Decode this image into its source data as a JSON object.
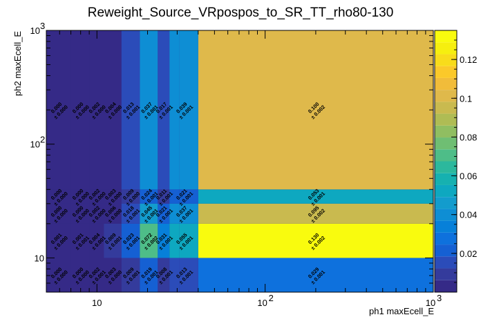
{
  "chart_data": {
    "type": "heatmap",
    "title": "Reweight_Source_VRpospos_to_SR_TT_rho80-130",
    "xlabel": "ph1 maxEcell_E",
    "ylabel": "ph2 maxEcell_E",
    "x_scale": "log",
    "y_scale": "log",
    "xlim": [
      5,
      1000
    ],
    "ylim": [
      5,
      1000
    ],
    "x_edges": [
      5,
      7,
      9,
      11,
      14,
      18,
      23,
      27,
      31,
      40,
      1000
    ],
    "y_edges": [
      5,
      10,
      20,
      30,
      40,
      1000
    ],
    "x_tick_labels": [
      {
        "v": 10,
        "t": "10"
      },
      {
        "v": 100,
        "t": "10"
      },
      {
        "v": 1000,
        "t": "10"
      }
    ],
    "x_tick_exps": [
      "",
      "2",
      "3"
    ],
    "y_tick_labels": [
      {
        "v": 10,
        "t": "10"
      },
      {
        "v": 100,
        "t": "10"
      },
      {
        "v": 1000,
        "t": "10"
      }
    ],
    "y_tick_exps": [
      "",
      "2",
      "3"
    ],
    "z_range": [
      0,
      0.135
    ],
    "z_ticks": [
      {
        "v": 0.02,
        "t": "0.02"
      },
      {
        "v": 0.04,
        "t": "0.04"
      },
      {
        "v": 0.06,
        "t": "0.06"
      },
      {
        "v": 0.08,
        "t": "0.08"
      },
      {
        "v": 0.1,
        "t": "0.1"
      },
      {
        "v": 0.12,
        "t": "0.12"
      }
    ],
    "palette": [
      "#352a87",
      "#343b9c",
      "#2b4cb9",
      "#1560d3",
      "#0e71dd",
      "#0780d9",
      "#0e8ed4",
      "#139ccd",
      "#0ea8c0",
      "#16b1b0",
      "#2cb89d",
      "#4ebd88",
      "#6fbe73",
      "#90be61",
      "#afbc54",
      "#c9ba4f",
      "#dfb94b",
      "#f1bc3a",
      "#fbc92a",
      "#f8dc1b",
      "#f6ef0f",
      "#f9fb0e"
    ],
    "cells": [
      {
        "row": 0,
        "values": [
          0.0,
          0.0,
          0.002,
          0.003,
          0.009,
          0.019,
          0.008,
          0.013,
          0.029
        ],
        "errors": [
          "0.000",
          "0.000",
          "0.001",
          "0.000",
          "0.001",
          "0.001",
          "0.001",
          "0.001",
          "0.001"
        ],
        "labels": [
          "0.000",
          "0.000",
          "0.002",
          "0.003",
          "0.009",
          "0.019",
          "0.008",
          "0.013",
          "0.029"
        ],
        "label_cols": [
          0,
          1,
          2,
          3,
          4,
          5,
          6,
          7,
          9
        ]
      },
      {
        "row": 1,
        "values": [
          0.001,
          0.001,
          0.004,
          0.009,
          0.023,
          0.072,
          0.031,
          0.055,
          0.13
        ],
        "errors": [
          "0.000",
          "0.001",
          "0.001",
          "0.001",
          "0.001",
          "0.002",
          "0.001",
          "0.001",
          "0.002"
        ],
        "labels": [
          "0.001",
          "0.001",
          "0.004",
          "0.009",
          "0.023",
          "0.072",
          "0.031",
          "0.055",
          "0.130"
        ],
        "label_cols": [
          0,
          1,
          2,
          3,
          4,
          5,
          6,
          7,
          9
        ]
      },
      {
        "row": 2,
        "values": [
          0.0,
          0.0,
          0.002,
          0.006,
          0.018,
          0.045,
          0.021,
          0.037,
          0.095
        ],
        "errors": [
          "0.000",
          "0.000",
          "0.000",
          "0.000",
          "0.001",
          "0.001",
          "0.001",
          "0.001",
          "0.002"
        ],
        "labels": [
          "0.000",
          "0.000",
          "0.002",
          "0.006",
          "0.018",
          "0.045",
          "0.021",
          "0.037",
          "0.095"
        ],
        "label_cols": [
          0,
          1,
          2,
          3,
          4,
          5,
          6,
          7,
          9
        ]
      },
      {
        "row": 3,
        "values": [
          0.0,
          0.0,
          0.002,
          0.003,
          0.009,
          0.024,
          0.011,
          0.021,
          0.053
        ],
        "errors": [
          "0.000",
          "0.000",
          "0.000",
          "0.000",
          "0.000",
          "0.001",
          "0.001",
          "0.001",
          "0.001"
        ],
        "labels": [
          "0.000",
          "0.000",
          "0.002",
          "0.003",
          "0.009",
          "0.024",
          "0.011",
          "0.021",
          "0.053"
        ],
        "label_cols": [
          0,
          1,
          2,
          3,
          4,
          5,
          6,
          7,
          9
        ]
      },
      {
        "row": 4,
        "values": [
          0.0,
          0.0,
          0.002,
          0.004,
          0.013,
          0.037,
          0.017,
          0.039,
          0.1
        ],
        "errors": [
          "0.000",
          "0.000",
          "0.000",
          "0.000",
          "0.001",
          "0.001",
          "0.001",
          "0.001",
          "0.002"
        ],
        "labels": [
          "0.000",
          "0.000",
          "0.002",
          "0.004",
          "0.013",
          "0.037",
          "0.017",
          "0.039",
          "0.100"
        ],
        "label_cols": [
          0,
          1,
          2,
          3,
          4,
          5,
          6,
          7,
          9
        ]
      }
    ]
  }
}
